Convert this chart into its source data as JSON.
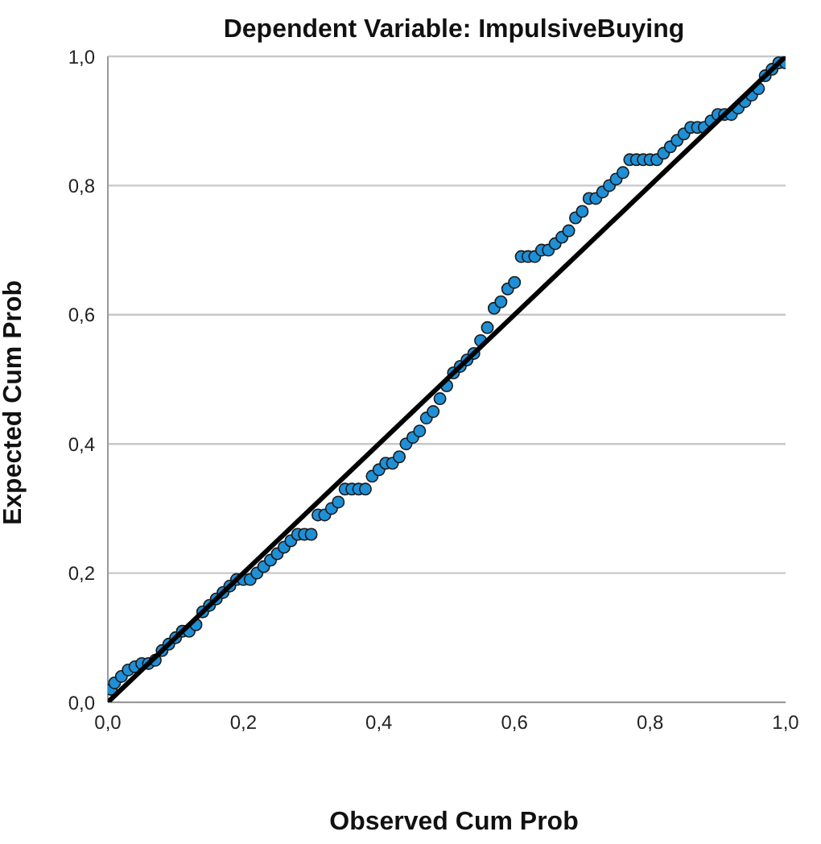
{
  "chart_data": {
    "type": "scatter",
    "title": "Dependent Variable: ImpulsiveBuying",
    "xlabel": "Observed Cum Prob",
    "ylabel": "Expected Cum Prob",
    "xlim": [
      0,
      1
    ],
    "ylim": [
      0,
      1
    ],
    "xticks": [
      {
        "value": 0,
        "label": "0,0"
      },
      {
        "value": 0.2,
        "label": "0,2"
      },
      {
        "value": 0.4,
        "label": "0,4"
      },
      {
        "value": 0.6,
        "label": "0,6"
      },
      {
        "value": 0.8,
        "label": "0,8"
      },
      {
        "value": 1,
        "label": "1,0"
      }
    ],
    "yticks": [
      {
        "value": 0,
        "label": "0,0"
      },
      {
        "value": 0.2,
        "label": "0,2"
      },
      {
        "value": 0.4,
        "label": "0,4"
      },
      {
        "value": 0.6,
        "label": "0,6"
      },
      {
        "value": 0.8,
        "label": "0,8"
      },
      {
        "value": 1,
        "label": "1,0"
      }
    ],
    "grid": "y",
    "legend": false,
    "marker": "circle",
    "series": [
      {
        "color": "#1f8fd6",
        "x": [
          0.005,
          0.01,
          0.02,
          0.03,
          0.04,
          0.05,
          0.06,
          0.07,
          0.08,
          0.09,
          0.1,
          0.11,
          0.12,
          0.13,
          0.14,
          0.15,
          0.16,
          0.17,
          0.18,
          0.19,
          0.2,
          0.21,
          0.22,
          0.23,
          0.24,
          0.25,
          0.26,
          0.27,
          0.28,
          0.29,
          0.3,
          0.31,
          0.32,
          0.33,
          0.34,
          0.35,
          0.36,
          0.37,
          0.38,
          0.39,
          0.4,
          0.41,
          0.42,
          0.43,
          0.44,
          0.45,
          0.46,
          0.47,
          0.48,
          0.49,
          0.5,
          0.51,
          0.52,
          0.53,
          0.54,
          0.55,
          0.56,
          0.57,
          0.58,
          0.59,
          0.6,
          0.61,
          0.62,
          0.63,
          0.64,
          0.65,
          0.66,
          0.67,
          0.68,
          0.69,
          0.7,
          0.71,
          0.72,
          0.73,
          0.74,
          0.75,
          0.76,
          0.77,
          0.78,
          0.79,
          0.8,
          0.81,
          0.82,
          0.83,
          0.84,
          0.85,
          0.86,
          0.87,
          0.88,
          0.89,
          0.9,
          0.91,
          0.92,
          0.93,
          0.94,
          0.95,
          0.96,
          0.97,
          0.98,
          0.99,
          1.0
        ],
        "values": [
          0.02,
          0.03,
          0.04,
          0.05,
          0.055,
          0.06,
          0.06,
          0.065,
          0.08,
          0.09,
          0.1,
          0.11,
          0.11,
          0.12,
          0.14,
          0.15,
          0.16,
          0.17,
          0.18,
          0.19,
          0.19,
          0.19,
          0.2,
          0.21,
          0.22,
          0.23,
          0.24,
          0.25,
          0.26,
          0.26,
          0.26,
          0.29,
          0.29,
          0.3,
          0.31,
          0.33,
          0.33,
          0.33,
          0.33,
          0.35,
          0.36,
          0.37,
          0.37,
          0.38,
          0.4,
          0.41,
          0.42,
          0.44,
          0.45,
          0.47,
          0.49,
          0.51,
          0.52,
          0.53,
          0.54,
          0.56,
          0.58,
          0.61,
          0.62,
          0.64,
          0.65,
          0.69,
          0.69,
          0.69,
          0.7,
          0.7,
          0.71,
          0.72,
          0.73,
          0.75,
          0.76,
          0.78,
          0.78,
          0.79,
          0.8,
          0.81,
          0.82,
          0.84,
          0.84,
          0.84,
          0.84,
          0.84,
          0.85,
          0.86,
          0.87,
          0.88,
          0.89,
          0.89,
          0.89,
          0.9,
          0.91,
          0.91,
          0.91,
          0.92,
          0.93,
          0.94,
          0.95,
          0.97,
          0.98,
          0.99,
          0.99
        ]
      },
      {
        "type": "line",
        "color": "#000000",
        "marker": "none",
        "line_style": "solid",
        "x": [
          0,
          1
        ],
        "values": [
          0,
          1
        ]
      }
    ]
  }
}
